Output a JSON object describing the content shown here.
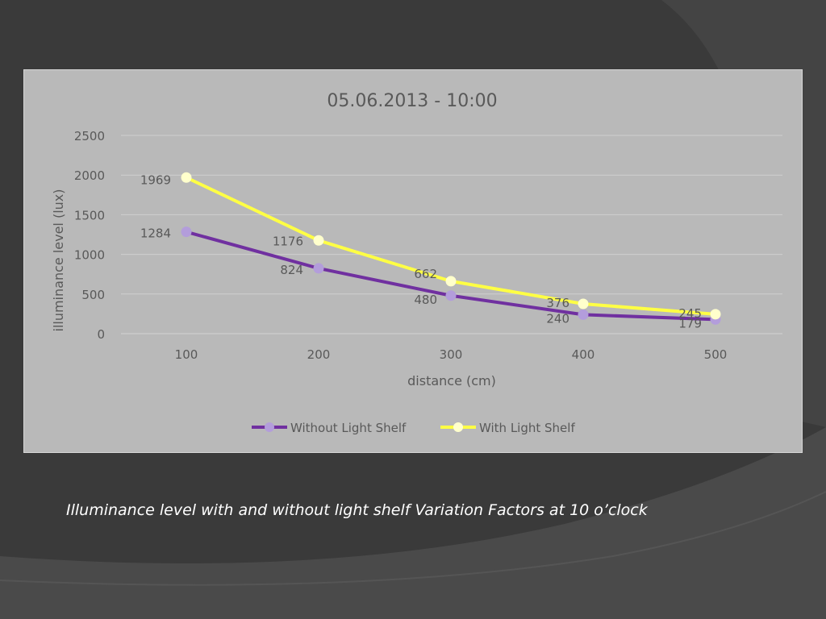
{
  "slide": {
    "caption": "Illuminance level with and without light shelf Variation Factors at 10 o’clock"
  },
  "colors": {
    "background": "#3a3a3a",
    "panel": "#b9b9b9",
    "without_series": "#7030a0",
    "without_marker": "#b39ddb",
    "with_series": "#ffff44",
    "with_marker": "#ffffcc"
  },
  "chart_data": {
    "type": "line",
    "title": "05.06.2013 - 10:00",
    "xlabel": "distance (cm)",
    "ylabel": "illuminance level (lux)",
    "x": [
      100,
      200,
      300,
      400,
      500
    ],
    "ylim": [
      0,
      2500
    ],
    "yticks": [
      0,
      500,
      1000,
      1500,
      2000,
      2500
    ],
    "grid": true,
    "legend_position": "bottom",
    "series": [
      {
        "name": "Without Light Shelf",
        "values": [
          1284,
          824,
          480,
          240,
          179
        ],
        "color": "#7030a0",
        "marker_color": "#b39ddb"
      },
      {
        "name": "With Light Shelf",
        "values": [
          1969,
          1176,
          662,
          376,
          245
        ],
        "color": "#ffff44",
        "marker_color": "#ffffcc"
      }
    ]
  }
}
